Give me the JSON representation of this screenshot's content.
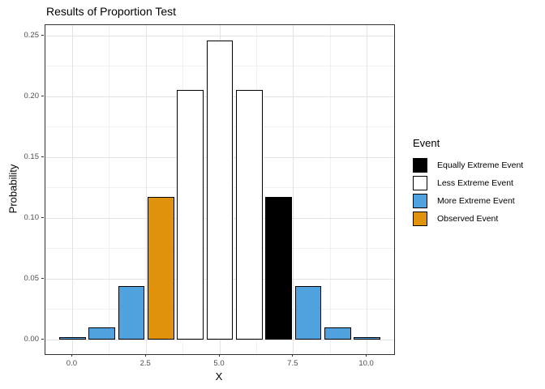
{
  "figure": {
    "title": "Results of Proportion Test"
  },
  "chart_data": {
    "type": "bar",
    "title": "Results of Proportion Test",
    "xlabel": "X",
    "ylabel": "Probability",
    "x": [
      0,
      1,
      2,
      3,
      4,
      5,
      6,
      7,
      8,
      9,
      10
    ],
    "values": [
      0.001,
      0.0098,
      0.0439,
      0.1172,
      0.2051,
      0.2461,
      0.2051,
      0.1172,
      0.0439,
      0.0098,
      0.001
    ],
    "bar_categories": [
      "More Extreme Event",
      "More Extreme Event",
      "More Extreme Event",
      "Observed Event",
      "Less Extreme Event",
      "Less Extreme Event",
      "Less Extreme Event",
      "Equally Extreme Event",
      "More Extreme Event",
      "More Extreme Event",
      "More Extreme Event"
    ],
    "bar_width": 0.9,
    "bar_border_color": "#000000",
    "xlim": [
      -0.92,
      10.92
    ],
    "ylim": [
      -0.012,
      0.2587
    ],
    "grid": "major+minor",
    "x_ticks": {
      "values": [
        0,
        2.5,
        5,
        7.5,
        10
      ],
      "labels": [
        "0.0",
        "2.5",
        "5.0",
        "7.5",
        "10.0"
      ]
    },
    "y_ticks": {
      "values": [
        0,
        0.05,
        0.1,
        0.15,
        0.2,
        0.25
      ],
      "labels": [
        "0.00",
        "0.05",
        "0.10",
        "0.15",
        "0.20",
        "0.25"
      ]
    },
    "x_minor": [
      1.25,
      3.75,
      6.25,
      8.75
    ],
    "y_minor": [
      0.025,
      0.075,
      0.125,
      0.175,
      0.225
    ],
    "legend": {
      "title": "Event",
      "position": "right",
      "entries": [
        {
          "label": "Equally Extreme Event",
          "color": "#000000"
        },
        {
          "label": "Less Extreme Event",
          "color": "#FFFFFF"
        },
        {
          "label": "More Extreme Event",
          "color": "#4FA2DD"
        },
        {
          "label": "Observed Event",
          "color": "#E0920D"
        }
      ]
    },
    "colors": {
      "Equally Extreme Event": "#000000",
      "Less Extreme Event": "#FFFFFF",
      "More Extreme Event": "#4FA2DD",
      "Observed Event": "#E0920D"
    }
  },
  "styles": {
    "grid_major_color": "#E3E3E3",
    "grid_minor_color": "#F0F0F0",
    "panel_border_color": "#333333",
    "tick_text_color": "#4D4D4D",
    "background": "#FFFFFF"
  }
}
